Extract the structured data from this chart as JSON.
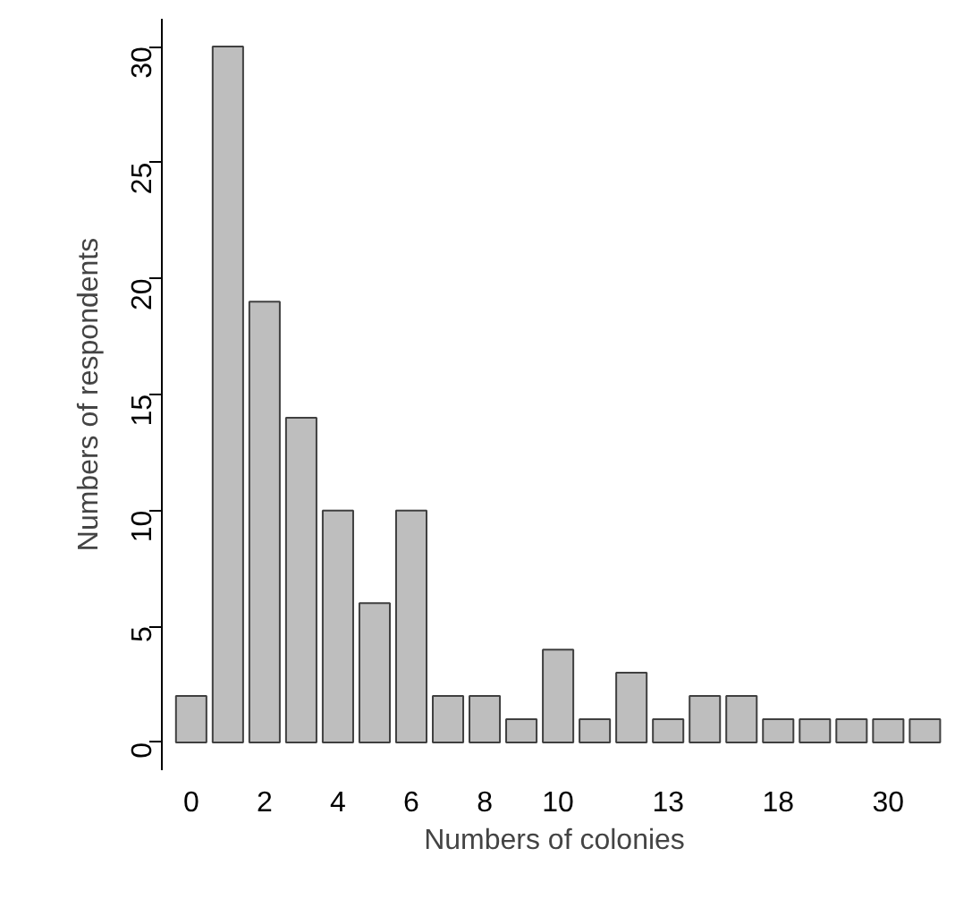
{
  "chart_data": {
    "type": "bar",
    "xlabel": "Numbers of colonies",
    "ylabel": "Numbers of respondents",
    "categories": [
      "0",
      null,
      "2",
      null,
      "4",
      null,
      "6",
      null,
      "8",
      null,
      "10",
      null,
      null,
      "13",
      null,
      null,
      "18",
      null,
      null,
      "30",
      null
    ],
    "values": [
      2,
      30,
      19,
      14,
      10,
      6,
      10,
      2,
      2,
      1,
      4,
      1,
      3,
      1,
      2,
      2,
      1,
      1,
      1,
      1,
      1
    ],
    "color": "#bebebe",
    "ylim": [
      0,
      30
    ],
    "yticks": [
      0,
      5,
      10,
      15,
      20,
      25,
      30
    ],
    "grid": false
  }
}
